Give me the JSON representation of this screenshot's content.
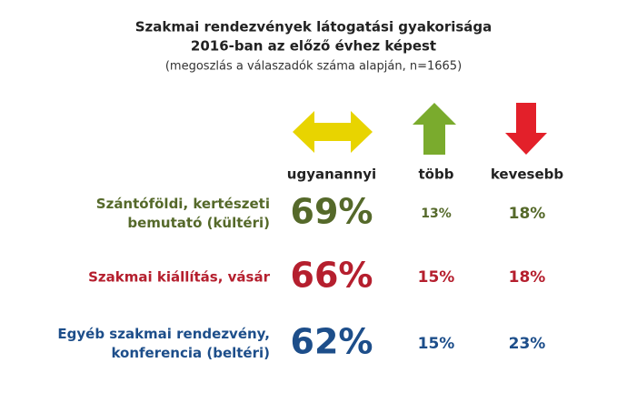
{
  "header": {
    "title": [
      "Szakmai rendezvények látogatási gyakorisága",
      "2016-ban az előző évhez képest"
    ],
    "subtitle": "(megoszlás a válaszadók száma alapján, n=1665)"
  },
  "table": {
    "columns": [
      "ugyanannyi",
      "több",
      "kevesebb"
    ],
    "rows": [
      {
        "label": [
          "Szántóföldi, kertészeti",
          "bemutató (kültéri)"
        ],
        "cells": [
          "69%",
          "13%",
          "18%"
        ]
      },
      {
        "label": [
          "Szakmai kiállítás, vásár"
        ],
        "cells": [
          "66%",
          "15%",
          "18%"
        ]
      },
      {
        "label": [
          "Egyéb szakmai rendezvény,",
          "konferencia (beltéri)"
        ],
        "cells": [
          "62%",
          "15%",
          "23%"
        ]
      }
    ]
  }
}
